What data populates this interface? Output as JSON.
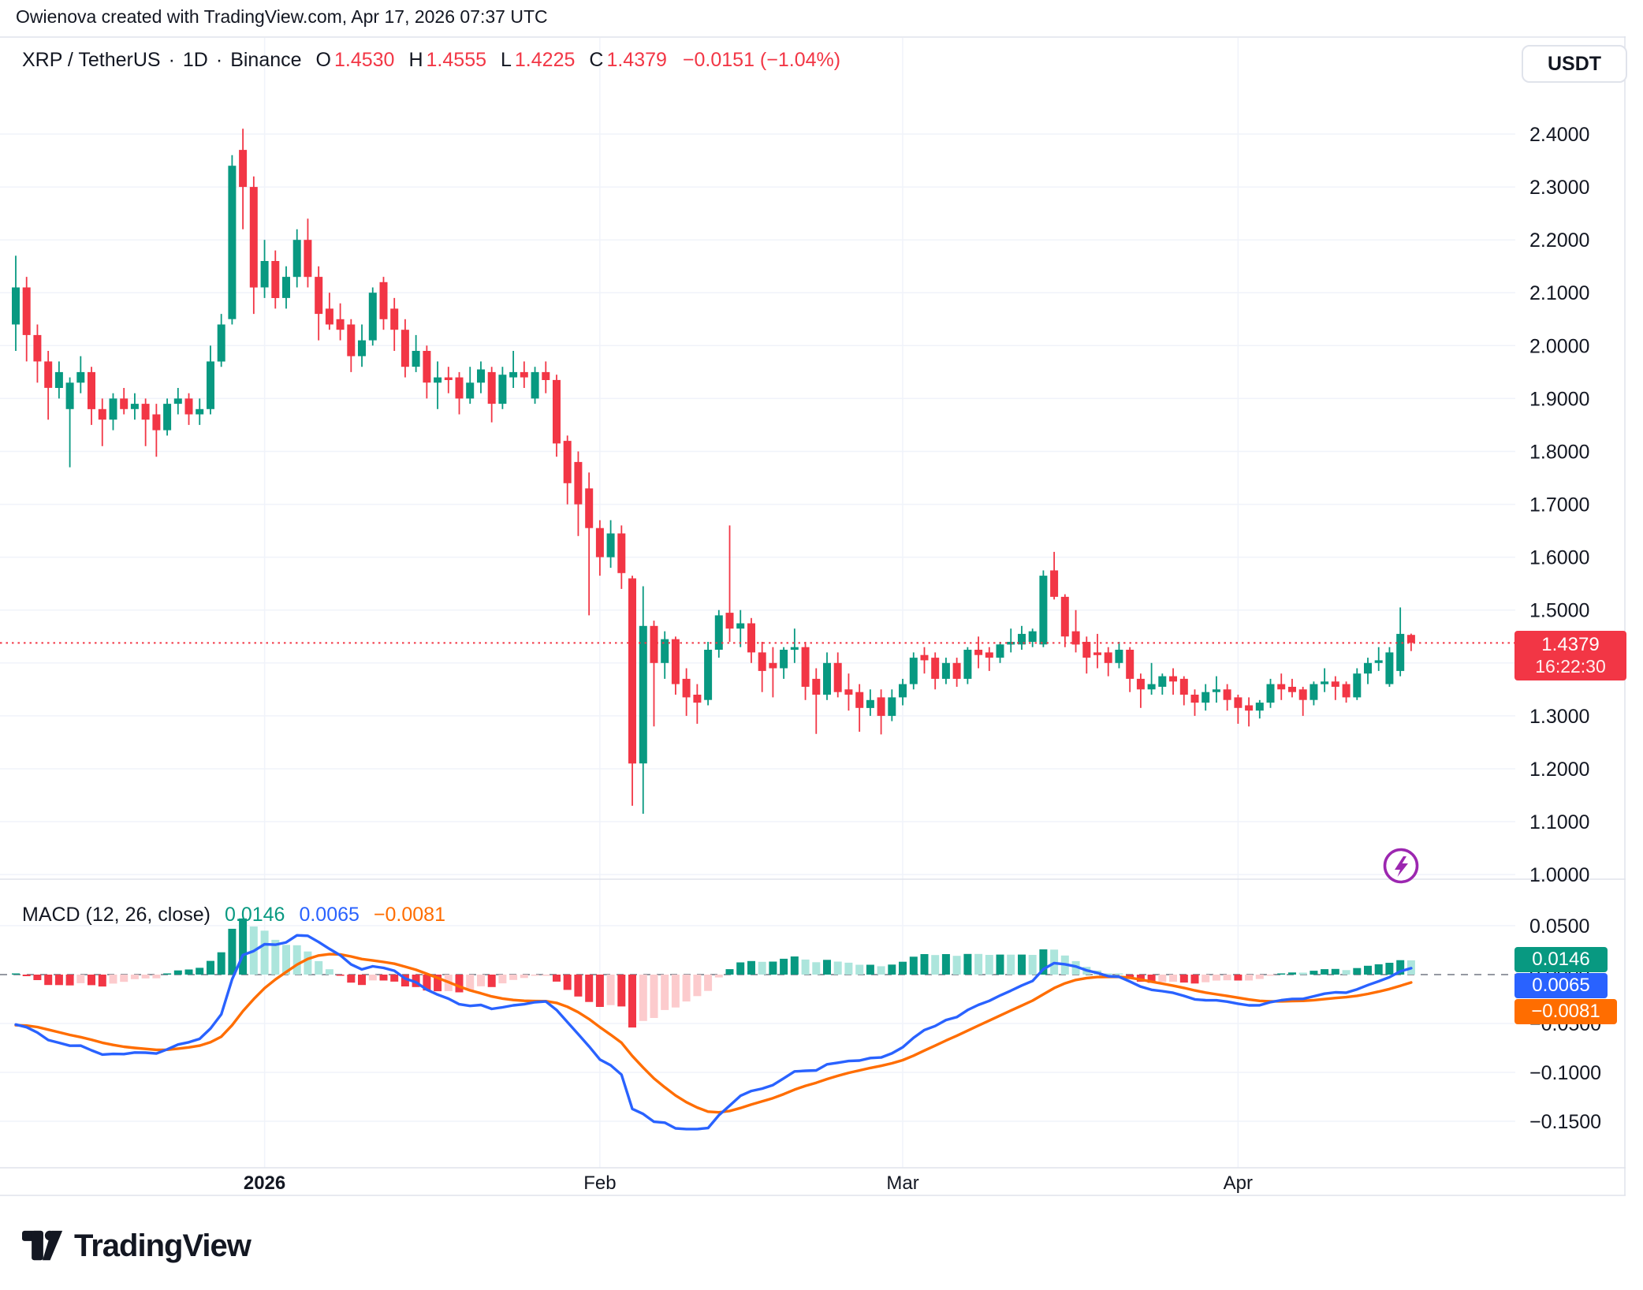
{
  "attribution": "Owienova created with TradingView.com, Apr 17, 2026 07:37 UTC",
  "header": {
    "symbol": "XRP / TetherUS",
    "separator": "·",
    "interval": "1D",
    "exchange": "Binance",
    "ohlc": [
      {
        "label": "O",
        "value": "1.4530"
      },
      {
        "label": "H",
        "value": "1.4555"
      },
      {
        "label": "L",
        "value": "1.4225"
      },
      {
        "label": "C",
        "value": "1.4379"
      }
    ],
    "change": "−0.0151 (−1.04%)"
  },
  "currency_button": "USDT",
  "last_price_label": {
    "value": "1.4379",
    "countdown": "16:22:30"
  },
  "macd_panel": {
    "title": "MACD (12, 26, close)",
    "hist": "0.0146",
    "macd": "0.0065",
    "signal": "−0.0081"
  },
  "logo_text": "TradingView",
  "colors": {
    "up": "#089981",
    "down": "#F23645",
    "hist_up": "#089981",
    "hist_up_fade": "#ACE5DC",
    "hist_down": "#F23645",
    "hist_down_fade": "#FCCBCD",
    "macd_line": "#2962FF",
    "signal_line": "#FF6D00",
    "grid": "#F0F3FA",
    "border": "#E0E3EB",
    "text": "#131722",
    "zero_dash": "#9598A1",
    "lightning": "#9C27B0",
    "badge_red": "#F23645"
  },
  "chart_data": {
    "type": "candlestick_with_macd",
    "title": "XRP / TetherUS · 1D · Binance",
    "price_axis_ticks": [
      2.4,
      2.3,
      2.2,
      2.1,
      2.0,
      1.9,
      1.8,
      1.7,
      1.6,
      1.5,
      1.4,
      1.3,
      1.2,
      1.1,
      1.0
    ],
    "price_range_hint": [
      0.99,
      2.58
    ],
    "last_price": 1.4379,
    "time_axis_labels": [
      {
        "label": "2026",
        "index": 23,
        "bold": true
      },
      {
        "label": "Feb",
        "index": 54,
        "bold": false
      },
      {
        "label": "Mar",
        "index": 82,
        "bold": false
      },
      {
        "label": "Apr",
        "index": 113,
        "bold": false
      }
    ],
    "candles": [
      [
        2.04,
        2.17,
        1.99,
        2.11
      ],
      [
        2.11,
        2.13,
        1.97,
        2.02
      ],
      [
        2.02,
        2.04,
        1.93,
        1.97
      ],
      [
        1.97,
        1.99,
        1.86,
        1.92
      ],
      [
        1.92,
        1.97,
        1.9,
        1.95
      ],
      [
        1.88,
        1.94,
        1.77,
        1.93
      ],
      [
        1.93,
        1.98,
        1.91,
        1.95
      ],
      [
        1.95,
        1.96,
        1.85,
        1.88
      ],
      [
        1.88,
        1.9,
        1.81,
        1.86
      ],
      [
        1.86,
        1.91,
        1.84,
        1.9
      ],
      [
        1.9,
        1.92,
        1.87,
        1.88
      ],
      [
        1.88,
        1.91,
        1.86,
        1.89
      ],
      [
        1.89,
        1.9,
        1.81,
        1.86
      ],
      [
        1.87,
        1.89,
        1.79,
        1.84
      ],
      [
        1.84,
        1.9,
        1.83,
        1.89
      ],
      [
        1.89,
        1.92,
        1.87,
        1.9
      ],
      [
        1.9,
        1.91,
        1.85,
        1.87
      ],
      [
        1.87,
        1.9,
        1.85,
        1.88
      ],
      [
        1.88,
        2.0,
        1.87,
        1.97
      ],
      [
        1.97,
        2.06,
        1.96,
        2.04
      ],
      [
        2.05,
        2.36,
        2.04,
        2.34
      ],
      [
        2.37,
        2.41,
        2.22,
        2.3
      ],
      [
        2.3,
        2.32,
        2.06,
        2.11
      ],
      [
        2.11,
        2.2,
        2.09,
        2.16
      ],
      [
        2.16,
        2.18,
        2.07,
        2.09
      ],
      [
        2.09,
        2.15,
        2.07,
        2.13
      ],
      [
        2.13,
        2.22,
        2.11,
        2.2
      ],
      [
        2.2,
        2.24,
        2.11,
        2.13
      ],
      [
        2.13,
        2.15,
        2.01,
        2.06
      ],
      [
        2.07,
        2.1,
        2.03,
        2.04
      ],
      [
        2.05,
        2.08,
        2.01,
        2.03
      ],
      [
        2.04,
        2.05,
        1.95,
        1.98
      ],
      [
        1.98,
        2.04,
        1.96,
        2.01
      ],
      [
        2.01,
        2.11,
        2.0,
        2.1
      ],
      [
        2.12,
        2.13,
        2.03,
        2.05
      ],
      [
        2.07,
        2.09,
        1.99,
        2.03
      ],
      [
        2.03,
        2.05,
        1.94,
        1.96
      ],
      [
        1.96,
        2.02,
        1.95,
        1.99
      ],
      [
        1.99,
        2.0,
        1.9,
        1.93
      ],
      [
        1.93,
        1.97,
        1.88,
        1.94
      ],
      [
        1.94,
        1.96,
        1.91,
        1.935
      ],
      [
        1.94,
        1.95,
        1.87,
        1.9
      ],
      [
        1.9,
        1.96,
        1.89,
        1.93
      ],
      [
        1.93,
        1.97,
        1.91,
        1.955
      ],
      [
        1.95,
        1.96,
        1.855,
        1.89
      ],
      [
        1.89,
        1.96,
        1.88,
        1.945
      ],
      [
        1.94,
        1.99,
        1.92,
        1.95
      ],
      [
        1.95,
        1.97,
        1.92,
        1.94
      ],
      [
        1.9,
        1.96,
        1.89,
        1.95
      ],
      [
        1.95,
        1.97,
        1.91,
        1.935
      ],
      [
        1.935,
        1.945,
        1.79,
        1.815
      ],
      [
        1.82,
        1.83,
        1.7,
        1.74
      ],
      [
        1.78,
        1.8,
        1.64,
        1.7
      ],
      [
        1.73,
        1.76,
        1.49,
        1.655
      ],
      [
        1.655,
        1.67,
        1.565,
        1.6
      ],
      [
        1.6,
        1.67,
        1.58,
        1.645
      ],
      [
        1.645,
        1.66,
        1.54,
        1.57
      ],
      [
        1.56,
        1.565,
        1.13,
        1.21
      ],
      [
        1.21,
        1.545,
        1.115,
        1.47
      ],
      [
        1.47,
        1.48,
        1.28,
        1.4
      ],
      [
        1.4,
        1.46,
        1.37,
        1.445
      ],
      [
        1.445,
        1.45,
        1.34,
        1.36
      ],
      [
        1.37,
        1.39,
        1.3,
        1.335
      ],
      [
        1.34,
        1.36,
        1.285,
        1.325
      ],
      [
        1.33,
        1.44,
        1.32,
        1.425
      ],
      [
        1.425,
        1.5,
        1.41,
        1.49
      ],
      [
        1.495,
        1.66,
        1.44,
        1.465
      ],
      [
        1.465,
        1.5,
        1.43,
        1.475
      ],
      [
        1.475,
        1.485,
        1.4,
        1.42
      ],
      [
        1.42,
        1.44,
        1.345,
        1.385
      ],
      [
        1.4,
        1.43,
        1.335,
        1.39
      ],
      [
        1.39,
        1.43,
        1.37,
        1.425
      ],
      [
        1.425,
        1.465,
        1.4,
        1.43
      ],
      [
        1.43,
        1.44,
        1.33,
        1.355
      ],
      [
        1.37,
        1.39,
        1.266,
        1.34
      ],
      [
        1.34,
        1.42,
        1.33,
        1.4
      ],
      [
        1.4,
        1.42,
        1.335,
        1.345
      ],
      [
        1.35,
        1.38,
        1.31,
        1.34
      ],
      [
        1.345,
        1.36,
        1.27,
        1.315
      ],
      [
        1.315,
        1.35,
        1.3,
        1.33
      ],
      [
        1.335,
        1.35,
        1.265,
        1.3
      ],
      [
        1.3,
        1.35,
        1.29,
        1.335
      ],
      [
        1.335,
        1.37,
        1.32,
        1.36
      ],
      [
        1.36,
        1.42,
        1.35,
        1.41
      ],
      [
        1.415,
        1.43,
        1.38,
        1.405
      ],
      [
        1.41,
        1.42,
        1.35,
        1.37
      ],
      [
        1.37,
        1.41,
        1.36,
        1.4
      ],
      [
        1.4,
        1.41,
        1.355,
        1.37
      ],
      [
        1.37,
        1.43,
        1.36,
        1.425
      ],
      [
        1.425,
        1.45,
        1.39,
        1.415
      ],
      [
        1.42,
        1.43,
        1.385,
        1.41
      ],
      [
        1.41,
        1.44,
        1.4,
        1.435
      ],
      [
        1.435,
        1.465,
        1.42,
        1.44
      ],
      [
        1.435,
        1.47,
        1.425,
        1.455
      ],
      [
        1.44,
        1.465,
        1.43,
        1.46
      ],
      [
        1.435,
        1.575,
        1.43,
        1.565
      ],
      [
        1.575,
        1.61,
        1.52,
        1.525
      ],
      [
        1.525,
        1.53,
        1.43,
        1.45
      ],
      [
        1.46,
        1.5,
        1.42,
        1.435
      ],
      [
        1.44,
        1.45,
        1.38,
        1.41
      ],
      [
        1.42,
        1.455,
        1.39,
        1.415
      ],
      [
        1.42,
        1.43,
        1.375,
        1.4
      ],
      [
        1.4,
        1.44,
        1.39,
        1.425
      ],
      [
        1.425,
        1.43,
        1.345,
        1.37
      ],
      [
        1.37,
        1.38,
        1.315,
        1.35
      ],
      [
        1.35,
        1.4,
        1.34,
        1.36
      ],
      [
        1.355,
        1.38,
        1.34,
        1.375
      ],
      [
        1.375,
        1.39,
        1.34,
        1.365
      ],
      [
        1.37,
        1.375,
        1.32,
        1.34
      ],
      [
        1.34,
        1.35,
        1.3,
        1.325
      ],
      [
        1.325,
        1.36,
        1.31,
        1.345
      ],
      [
        1.345,
        1.375,
        1.325,
        1.35
      ],
      [
        1.35,
        1.36,
        1.31,
        1.33
      ],
      [
        1.335,
        1.34,
        1.285,
        1.315
      ],
      [
        1.32,
        1.335,
        1.28,
        1.31
      ],
      [
        1.31,
        1.33,
        1.295,
        1.325
      ],
      [
        1.325,
        1.37,
        1.315,
        1.36
      ],
      [
        1.36,
        1.38,
        1.33,
        1.35
      ],
      [
        1.355,
        1.37,
        1.335,
        1.345
      ],
      [
        1.35,
        1.355,
        1.3,
        1.33
      ],
      [
        1.33,
        1.365,
        1.32,
        1.36
      ],
      [
        1.36,
        1.39,
        1.345,
        1.365
      ],
      [
        1.365,
        1.375,
        1.33,
        1.355
      ],
      [
        1.36,
        1.365,
        1.325,
        1.335
      ],
      [
        1.335,
        1.39,
        1.33,
        1.38
      ],
      [
        1.38,
        1.41,
        1.36,
        1.4
      ],
      [
        1.4,
        1.43,
        1.385,
        1.405
      ],
      [
        1.36,
        1.43,
        1.355,
        1.42
      ],
      [
        1.385,
        1.505,
        1.375,
        1.455
      ],
      [
        1.453,
        1.4555,
        1.4225,
        1.4379
      ]
    ],
    "macd": {
      "fast": 12,
      "slow": 26,
      "signal": 9,
      "source": "close",
      "current": {
        "hist": 0.0146,
        "macd": 0.0065,
        "signal": -0.0081
      },
      "axis_ticks": [
        0.05,
        0,
        -0.05,
        -0.1,
        -0.15
      ],
      "range_hint": [
        -0.198,
        0.093
      ]
    }
  }
}
